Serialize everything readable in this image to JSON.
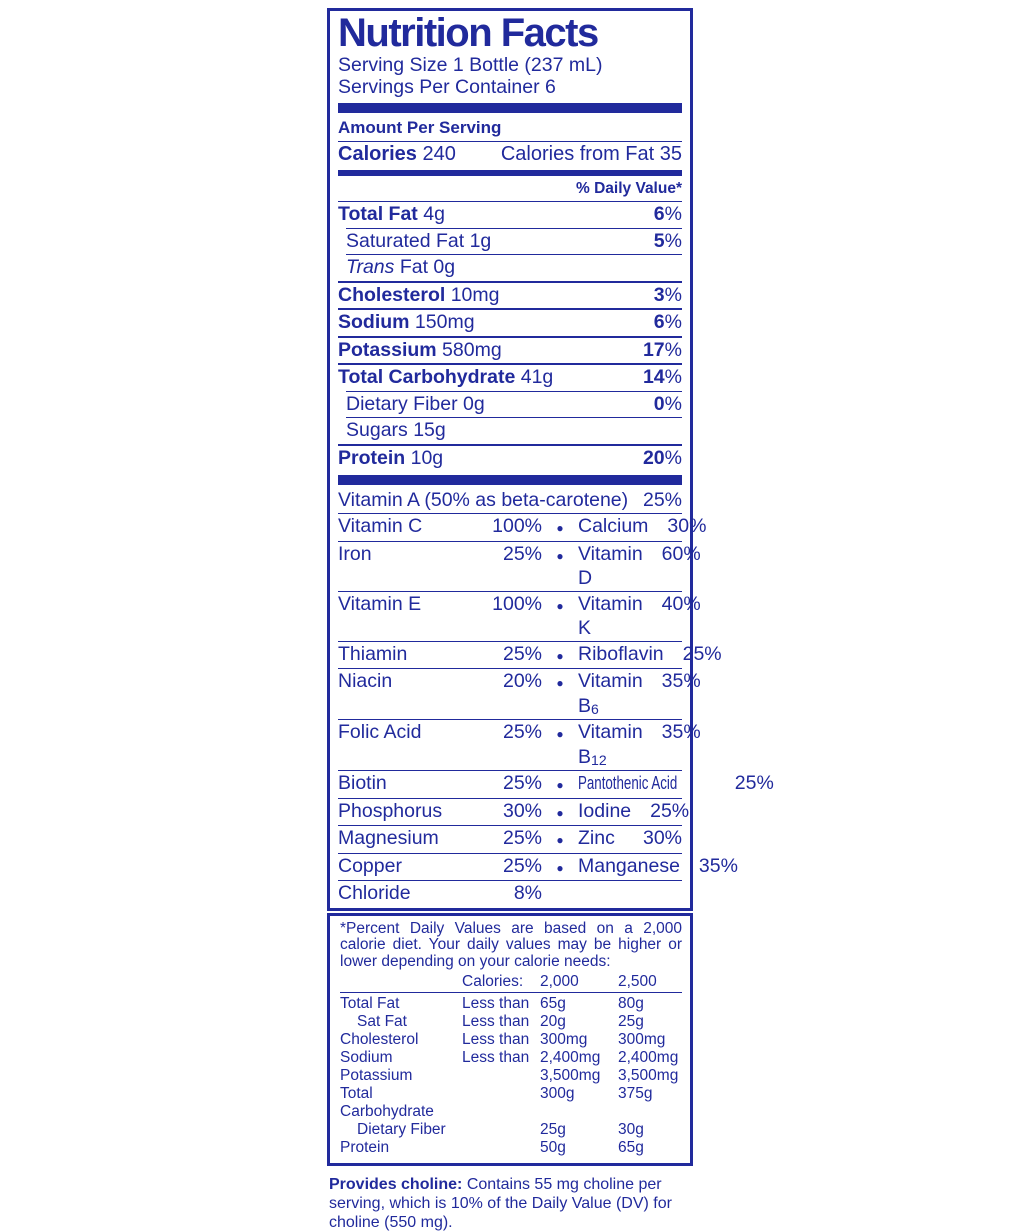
{
  "colors": {
    "navy": "#212a9c"
  },
  "panel": {
    "title": "Nutrition Facts",
    "serving_size": "Serving Size 1 Bottle (237 mL)",
    "servings_per_container": "Servings Per Container 6",
    "amount_per_serving": "Amount Per Serving",
    "calories_label": "Calories",
    "calories_value": "240",
    "calories_from_fat": "Calories from Fat 35",
    "daily_value_header": "% Daily Value*"
  },
  "nutrients": [
    {
      "label": "Total Fat",
      "amount": "4g",
      "dv": "6%",
      "bold": true
    },
    {
      "label": "Saturated Fat",
      "amount": "1g",
      "dv": "5%",
      "indent": true
    },
    {
      "italic_prefix": "Trans",
      "label": "Fat",
      "amount": "0g",
      "dv": "",
      "indent": true
    },
    {
      "label": "Cholesterol",
      "amount": "10mg",
      "dv": "3%",
      "bold": true
    },
    {
      "label": "Sodium",
      "amount": "150mg",
      "dv": "6%",
      "bold": true
    },
    {
      "label": "Potassium",
      "amount": "580mg",
      "dv": "17%",
      "bold": true
    },
    {
      "label": "Total Carbohydrate",
      "amount": "41g",
      "dv": "14%",
      "bold": true
    },
    {
      "label": "Dietary Fiber",
      "amount": "0g",
      "dv": "0%",
      "indent": true
    },
    {
      "label": "Sugars",
      "amount": "15g",
      "dv": "",
      "indent": true
    },
    {
      "label": "Protein",
      "amount": "10g",
      "dv": "20%",
      "bold": true
    }
  ],
  "micronutrients": {
    "bullet": "●",
    "full_width_row": {
      "label": "Vitamin A (50% as beta-carotene)",
      "dv": "25%"
    },
    "pair_rows": [
      {
        "left": "Vitamin C",
        "left_dv": "100%",
        "right": "Calcium",
        "right_dv": "30%"
      },
      {
        "left": "Iron",
        "left_dv": "25%",
        "right": "Vitamin D",
        "right_dv": "60%"
      },
      {
        "left": "Vitamin E",
        "left_dv": "100%",
        "right": "Vitamin K",
        "right_dv": "40%"
      },
      {
        "left": "Thiamin",
        "left_dv": "25%",
        "right": "Riboflavin",
        "right_dv": "25%"
      },
      {
        "left": "Niacin",
        "left_dv": "20%",
        "right": "Vitamin B",
        "right_subscript": "6",
        "right_dv": "35%"
      },
      {
        "left": "Folic Acid",
        "left_dv": "25%",
        "right": "Vitamin B",
        "right_subscript": "12",
        "right_dv": "35%"
      },
      {
        "left": "Biotin",
        "left_dv": "25%",
        "right": "Pantothenic Acid",
        "right_condensed": true,
        "right_dv": "25%"
      },
      {
        "left": "Phosphorus",
        "left_dv": "30%",
        "right": "Iodine",
        "right_dv": "25%"
      },
      {
        "left": "Magnesium",
        "left_dv": "25%",
        "right": "Zinc",
        "right_dv": "30%"
      },
      {
        "left": "Copper",
        "left_dv": "25%",
        "right": "Manganese",
        "right_dv": "35%"
      },
      {
        "left": "Chloride",
        "left_dv": "8%",
        "right": "",
        "right_dv": ""
      }
    ]
  },
  "footnote": {
    "asterisk_text": "*Percent Daily Values are based on a 2,000 calorie diet. Your daily values may be higher or lower depending on your calorie needs:",
    "header": {
      "calories_label": "Calories:",
      "col_2000": "2,000",
      "col_2500": "2,500"
    },
    "rows": [
      {
        "label": "Total Fat",
        "qualifier": "Less than",
        "v2000": "65g",
        "v2500": "80g"
      },
      {
        "label": "Sat Fat",
        "qualifier": "Less than",
        "v2000": "20g",
        "v2500": "25g",
        "indent": true
      },
      {
        "label": "Cholesterol",
        "qualifier": "Less than",
        "v2000": "300mg",
        "v2500": "300mg"
      },
      {
        "label": "Sodium",
        "qualifier": "Less than",
        "v2000": "2,400mg",
        "v2500": "2,400mg"
      },
      {
        "label": "Potassium",
        "qualifier": "",
        "v2000": "3,500mg",
        "v2500": "3,500mg"
      },
      {
        "label": "Total Carbohydrate",
        "qualifier": "",
        "v2000": "300g",
        "v2500": "375g"
      },
      {
        "label": "Dietary Fiber",
        "qualifier": "",
        "v2000": "25g",
        "v2500": "30g",
        "indent": true
      },
      {
        "label": "Protein",
        "qualifier": "",
        "v2000": "50g",
        "v2500": "65g"
      }
    ]
  },
  "choline_note": {
    "bold_lead": "Provides choline:",
    "text": " Contains 55 mg choline per serving, which is 10% of the Daily Value (DV) for choline (550 mg)."
  }
}
